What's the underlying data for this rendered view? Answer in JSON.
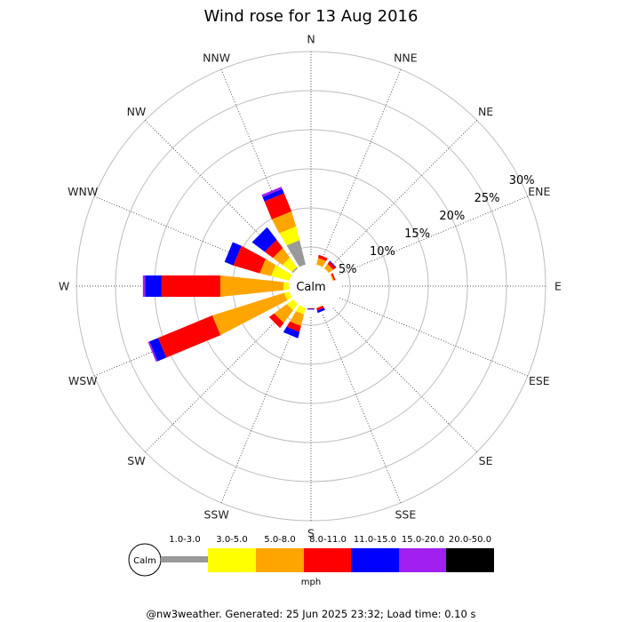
{
  "chart_data": {
    "type": "wind-rose",
    "title": "Wind rose for 13 Aug 2016",
    "directions": [
      "N",
      "NNE",
      "NE",
      "ENE",
      "E",
      "ESE",
      "SE",
      "SSE",
      "S",
      "SSW",
      "SW",
      "WSW",
      "W",
      "WNW",
      "NW",
      "NNW"
    ],
    "radial_ticks": [
      "5%",
      "10%",
      "15%",
      "20%",
      "25%",
      "30%"
    ],
    "radial_max_percent": 30,
    "calm_label": "Calm",
    "calm_radius_percent": 2,
    "bins": [
      "1.0-3.0",
      "3.0-5.0",
      "5.0-8.0",
      "8.0-11.0",
      "11.0-15.0",
      "15.0-20.0",
      "20.0-50.0"
    ],
    "bin_colors": [
      "#999999",
      "#ffff00",
      "#ffa500",
      "#ff0000",
      "#0000ff",
      "#a020f0",
      "#000000"
    ],
    "unit": "mph",
    "series": [
      {
        "direction": "N",
        "values": [
          0.3,
          0,
          0,
          0,
          0,
          0,
          0
        ]
      },
      {
        "direction": "NNE",
        "values": [
          0.3,
          0.4,
          1.0,
          0.4,
          0,
          0,
          0
        ]
      },
      {
        "direction": "NE",
        "values": [
          0.3,
          0.4,
          0.8,
          0.4,
          0.1,
          0,
          0
        ]
      },
      {
        "direction": "ENE",
        "values": [
          0.2,
          0.3,
          0.5,
          0.2,
          0,
          0,
          0
        ]
      },
      {
        "direction": "E",
        "values": [
          0.2,
          0.2,
          0,
          0,
          0,
          0,
          0
        ]
      },
      {
        "direction": "ESE",
        "values": [
          0.3,
          0,
          0,
          0,
          0,
          0,
          0
        ]
      },
      {
        "direction": "SE",
        "values": [
          0,
          0,
          0,
          0,
          0,
          0,
          0
        ]
      },
      {
        "direction": "SSE",
        "values": [
          0.3,
          0.3,
          0.3,
          0.3,
          0.3,
          0,
          0
        ]
      },
      {
        "direction": "S",
        "values": [
          0.2,
          0.2,
          0.3,
          0.2,
          0.1,
          0,
          0
        ]
      },
      {
        "direction": "SSW",
        "values": [
          0.5,
          1.2,
          1.5,
          0.8,
          0.8,
          0,
          0
        ]
      },
      {
        "direction": "SW",
        "values": [
          0.8,
          1.0,
          2.0,
          0.8,
          0,
          0,
          0
        ]
      },
      {
        "direction": "WSW",
        "values": [
          0.5,
          1.0,
          9.6,
          7.5,
          1.2,
          0.2,
          0
        ]
      },
      {
        "direction": "W",
        "values": [
          0.5,
          1.0,
          8.1,
          7.5,
          2.1,
          0.3,
          0
        ]
      },
      {
        "direction": "WNW",
        "values": [
          0.7,
          2.5,
          1.5,
          3.5,
          1.2,
          0,
          0
        ]
      },
      {
        "direction": "NW",
        "values": [
          1.0,
          1.5,
          1.5,
          1.3,
          2.0,
          0,
          0
        ]
      },
      {
        "direction": "NNW",
        "values": [
          4.0,
          1.8,
          2.0,
          2.5,
          0.6,
          0.3,
          0
        ]
      }
    ]
  },
  "legend": {
    "calm_label": "Calm",
    "unit_label": "mph"
  },
  "footer": "@nw3weather. Generated: 25 Jun 2025 23:32; Load time: 0.10 s"
}
